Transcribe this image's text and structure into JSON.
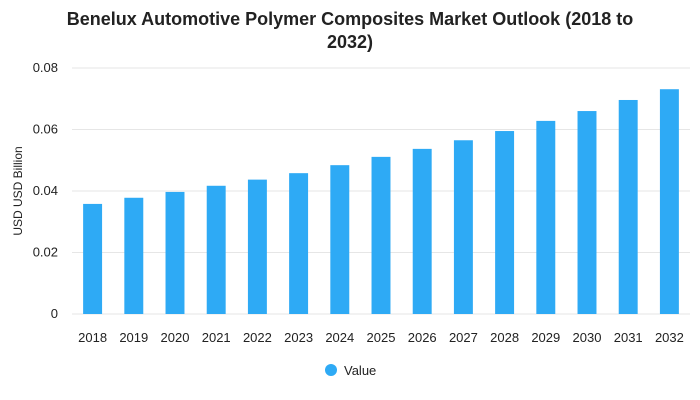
{
  "chart_data": {
    "type": "bar",
    "title": "Benelux Automotive Polymer Composites Market Outlook (2018 to 2032)",
    "title_lines": [
      "Benelux Automotive Polymer Composites Market Outlook (2018 to",
      "2032)"
    ],
    "xlabel": "",
    "ylabel": "USD USD Billion",
    "ylim": [
      0,
      0.08
    ],
    "yticks": [
      0,
      0.02,
      0.04,
      0.06,
      0.08
    ],
    "ytick_labels": [
      "0",
      "0.02",
      "0.04",
      "0.06",
      "0.08"
    ],
    "categories": [
      "2018",
      "2019",
      "2020",
      "2021",
      "2022",
      "2023",
      "2024",
      "2025",
      "2026",
      "2027",
      "2028",
      "2029",
      "2030",
      "2031",
      "2032"
    ],
    "series": [
      {
        "name": "Value",
        "color": "#2eaaf5",
        "values": [
          0.0358,
          0.0378,
          0.0397,
          0.0417,
          0.0437,
          0.0458,
          0.0484,
          0.0511,
          0.0537,
          0.0565,
          0.0595,
          0.0628,
          0.066,
          0.0696,
          0.0731
        ]
      }
    ],
    "grid": true,
    "legend_position": "bottom-center"
  }
}
